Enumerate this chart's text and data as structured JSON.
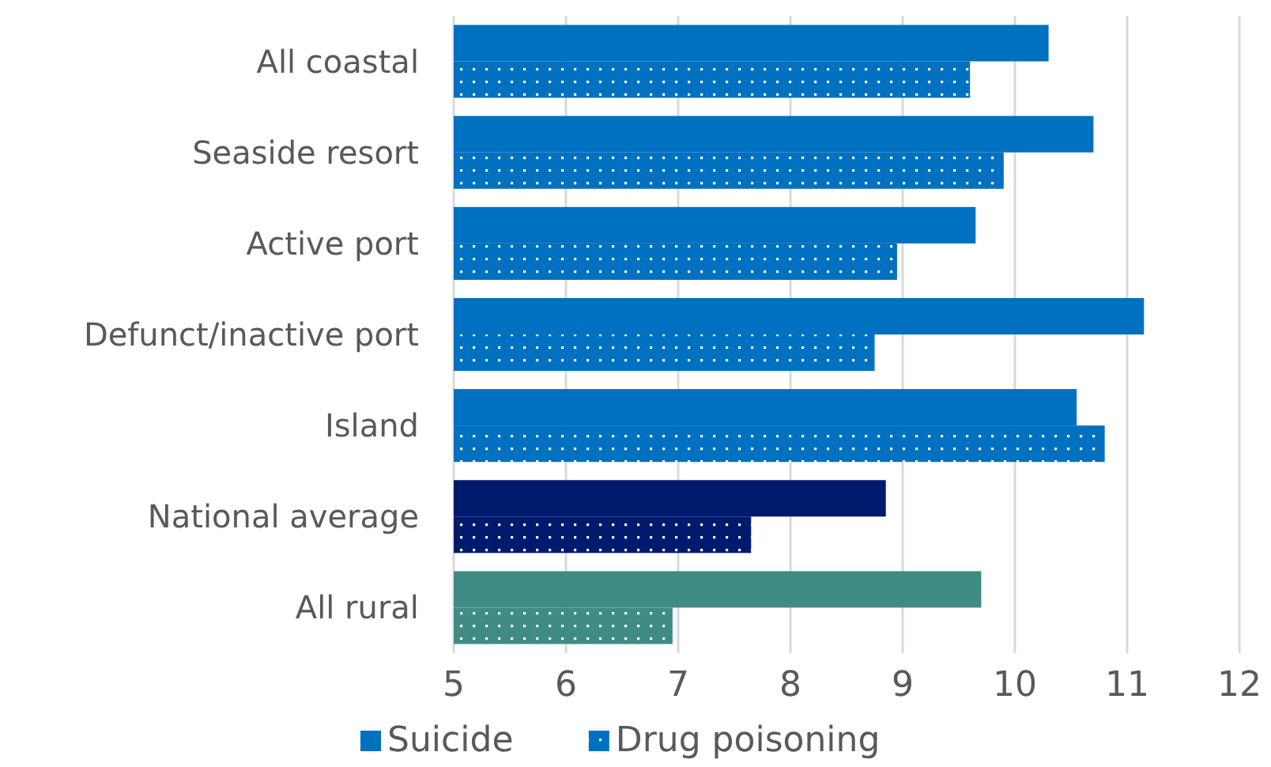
{
  "chart_data": {
    "type": "bar",
    "orientation": "horizontal",
    "categories": [
      "All coastal",
      "Seaside resort",
      "Active port",
      "Defunct/inactive port",
      "Island",
      "National average",
      "All rural"
    ],
    "series": [
      {
        "name": "Suicide",
        "color": "#0070c0",
        "colors": [
          "#0070c0",
          "#0070c0",
          "#0070c0",
          "#0070c0",
          "#0070c0",
          "#001a6e",
          "#3f8c84"
        ],
        "values": [
          10.3,
          10.7,
          9.65,
          11.15,
          10.55,
          8.85,
          9.7
        ]
      },
      {
        "name": "Drug poisoning",
        "color": "#0070c0",
        "colors": [
          "#0070c0",
          "#0070c0",
          "#0070c0",
          "#0070c0",
          "#0070c0",
          "#001a6e",
          "#3f8c84"
        ],
        "values": [
          9.6,
          9.9,
          8.95,
          8.75,
          10.8,
          7.65,
          6.95
        ]
      }
    ],
    "xlim": [
      5,
      12
    ],
    "xticks": [
      5,
      6,
      7,
      8,
      9,
      10,
      11,
      12
    ],
    "grid": "x",
    "legend": "bottom"
  }
}
